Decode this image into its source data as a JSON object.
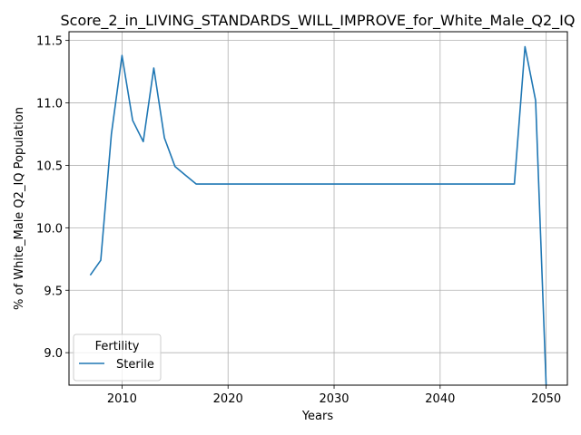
{
  "chart_data": {
    "type": "line",
    "title": "Score_2_in_LIVING_STANDARDS_WILL_IMPROVE_for_White_Male_Q2_IQ",
    "xlabel": "Years",
    "ylabel": "% of White_Male Q2_IQ Population",
    "xlim": [
      2005,
      2052
    ],
    "ylim": [
      8.74,
      11.57
    ],
    "xticks": [
      2010,
      2020,
      2030,
      2040,
      2050
    ],
    "yticks": [
      9.0,
      9.5,
      10.0,
      10.5,
      11.0,
      11.5
    ],
    "grid": true,
    "legend": {
      "title": "Fertility",
      "placement": "lower-left"
    },
    "series": [
      {
        "name": "Sterile",
        "color": "#1f77b4",
        "x": [
          2007,
          2008,
          2009,
          2010,
          2011,
          2012,
          2013,
          2014,
          2015,
          2016,
          2017,
          2018,
          2020,
          2025,
          2030,
          2035,
          2040,
          2045,
          2047,
          2048,
          2049,
          2050
        ],
        "y": [
          9.62,
          9.74,
          10.75,
          11.38,
          10.86,
          10.69,
          11.28,
          10.72,
          10.49,
          10.42,
          10.35,
          10.35,
          10.35,
          10.35,
          10.35,
          10.35,
          10.35,
          10.35,
          10.35,
          11.45,
          11.02,
          8.74
        ]
      }
    ]
  }
}
